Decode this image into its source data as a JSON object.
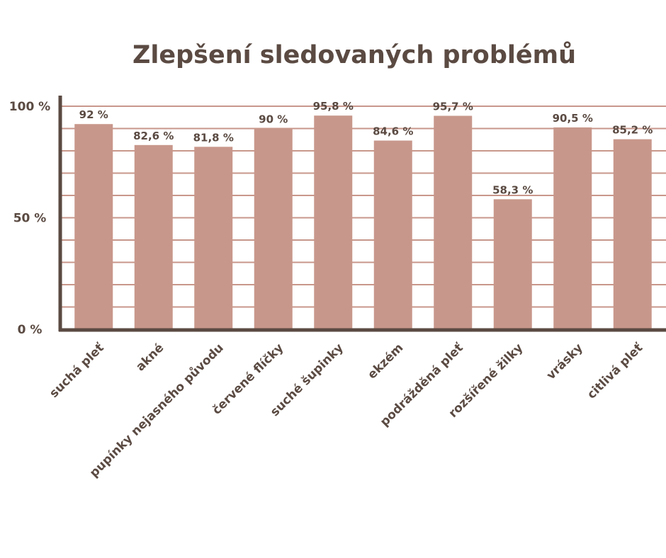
{
  "chart_data": {
    "type": "bar",
    "title": "Zlepšení sledovaných problémů",
    "categories": [
      "suchá pleť",
      "akné",
      "pupínky nejasného původu",
      "červené flíčky",
      "suché šupinky",
      "ekzém",
      "podrážděná pleť",
      "rozšířené žilky",
      "vrásky",
      "citlivá pleť"
    ],
    "values": [
      92,
      82.6,
      81.8,
      90,
      95.8,
      84.6,
      95.7,
      58.3,
      90.5,
      85.2
    ],
    "value_labels": [
      "92 %",
      "82,6 %",
      "81,8 %",
      "90 %",
      "95,8 %",
      "84,6 %",
      "95,7 %",
      "58,3 %",
      "90,5 %",
      "85,2 %"
    ],
    "y_ticks": [
      {
        "value": 0,
        "label": "0 %"
      },
      {
        "value": 50,
        "label": "50 %"
      },
      {
        "value": 100,
        "label": "100 %"
      }
    ],
    "ylim": [
      0,
      100
    ],
    "grid": true,
    "colors": {
      "bar": "#c8978b",
      "grid": "#c8978b",
      "axis": "#5a4a42",
      "text": "#5a4a42"
    }
  }
}
